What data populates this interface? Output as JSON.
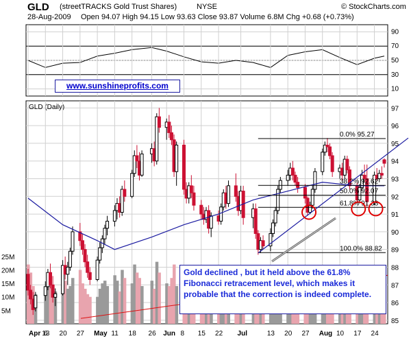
{
  "header": {
    "ticker": "GLD",
    "fullname": "(streetTRACKS Gold Trust Shares)",
    "exchange": "NYSE",
    "brand": "© StockCharts.com",
    "date": "28-Aug-2009",
    "ohlc_text": "Open 94.07  High 94.15  Low 93.63  Close 93.87  Volume 6.8M  Chg +0.68 (+0.73%)",
    "ohlc": {
      "open": 94.07,
      "high": 94.15,
      "low": 93.63,
      "close": 93.87,
      "volume": "6.8M",
      "change": "+0.68 (+0.73%)"
    }
  },
  "website": "www.sunshineprofits.com",
  "annotation": "Gold declined , but it held above the 61.8% Fibonacci retracement level, which makes it probable that the correction is indeed complete.",
  "colors": {
    "rsi_line": "#000000",
    "price_up": "#000000",
    "price_down": "#cc1133",
    "moving_average": "#1a1aa0",
    "trendline": "#1a1aa0",
    "fib_lines": "#000000",
    "circles": "#e00000",
    "volume_up": "#9a9a9a",
    "volume_down": "#e8a4ae",
    "volume_ma": "#dd1111",
    "grid": "#d0d0d0"
  },
  "chart_data": [
    {
      "type": "line",
      "name": "rsi",
      "yticks": [
        10,
        30,
        50,
        70,
        90
      ],
      "ylim": [
        0,
        100
      ],
      "reference_levels": [
        30,
        70
      ],
      "x": [
        "2009-04-06",
        "2009-04-13",
        "2009-04-20",
        "2009-04-27",
        "2009-05-04",
        "2009-05-11",
        "2009-05-18",
        "2009-05-26",
        "2009-06-01",
        "2009-06-08",
        "2009-06-15",
        "2009-06-22",
        "2009-06-29",
        "2009-07-06",
        "2009-07-13",
        "2009-07-20",
        "2009-07-27",
        "2009-08-03",
        "2009-08-10",
        "2009-08-17",
        "2009-08-24",
        "2009-08-28"
      ],
      "values": [
        50,
        40,
        46,
        47,
        56,
        60,
        65,
        68,
        63,
        55,
        48,
        46,
        50,
        47,
        40,
        57,
        62,
        65,
        54,
        44,
        53,
        56
      ]
    },
    {
      "type": "candlestick",
      "name": "price",
      "title": "GLD (Daily)",
      "yticks": [
        85,
        86,
        87,
        88,
        89,
        90,
        91,
        92,
        93,
        94,
        95,
        96,
        97
      ],
      "ylim": [
        84.8,
        97.4
      ],
      "xticks": [
        "Apr",
        "6",
        "13",
        "20",
        "27",
        "May",
        "11",
        "18",
        "26",
        "Jun",
        "8",
        "15",
        "22",
        "Jul",
        "13",
        "20",
        "27",
        "Aug",
        "10",
        "17",
        "24"
      ],
      "grid": true,
      "candles": [
        {
          "d": "2009-04-06",
          "o": 87.6,
          "h": 87.9,
          "l": 86.4,
          "c": 86.7
        },
        {
          "d": "2009-04-07",
          "o": 86.7,
          "h": 87.0,
          "l": 85.9,
          "c": 86.2
        },
        {
          "d": "2009-04-08",
          "o": 86.2,
          "h": 86.6,
          "l": 85.3,
          "c": 85.6
        },
        {
          "d": "2009-04-09",
          "o": 85.7,
          "h": 86.6,
          "l": 85.5,
          "c": 86.4
        },
        {
          "d": "2009-04-13",
          "o": 86.4,
          "h": 87.2,
          "l": 86.1,
          "c": 86.9
        },
        {
          "d": "2009-04-14",
          "o": 86.9,
          "h": 87.9,
          "l": 86.7,
          "c": 87.7
        },
        {
          "d": "2009-04-15",
          "o": 87.7,
          "h": 88.2,
          "l": 86.8,
          "c": 87.0
        },
        {
          "d": "2009-04-16",
          "o": 87.0,
          "h": 87.5,
          "l": 86.0,
          "c": 86.3
        },
        {
          "d": "2009-04-17",
          "o": 86.3,
          "h": 86.8,
          "l": 85.8,
          "c": 86.5
        },
        {
          "d": "2009-04-20",
          "o": 86.5,
          "h": 88.4,
          "l": 86.4,
          "c": 88.1
        },
        {
          "d": "2009-04-21",
          "o": 88.1,
          "h": 88.6,
          "l": 87.3,
          "c": 87.6
        },
        {
          "d": "2009-04-22",
          "o": 87.6,
          "h": 88.3,
          "l": 87.0,
          "c": 88.0
        },
        {
          "d": "2009-04-23",
          "o": 88.0,
          "h": 89.1,
          "l": 87.8,
          "c": 88.9
        },
        {
          "d": "2009-04-24",
          "o": 88.9,
          "h": 90.3,
          "l": 88.7,
          "c": 90.0
        },
        {
          "d": "2009-04-27",
          "o": 90.0,
          "h": 90.5,
          "l": 89.2,
          "c": 89.5
        },
        {
          "d": "2009-04-28",
          "o": 89.5,
          "h": 89.9,
          "l": 88.7,
          "c": 89.0
        },
        {
          "d": "2009-04-29",
          "o": 89.0,
          "h": 89.3,
          "l": 88.0,
          "c": 88.3
        },
        {
          "d": "2009-04-30",
          "o": 88.3,
          "h": 88.7,
          "l": 87.4,
          "c": 87.7
        },
        {
          "d": "2009-05-01",
          "o": 87.7,
          "h": 88.0,
          "l": 87.0,
          "c": 87.3
        },
        {
          "d": "2009-05-04",
          "o": 87.3,
          "h": 88.6,
          "l": 87.2,
          "c": 88.4
        },
        {
          "d": "2009-05-05",
          "o": 88.4,
          "h": 89.4,
          "l": 88.2,
          "c": 89.1
        },
        {
          "d": "2009-05-06",
          "o": 89.1,
          "h": 89.8,
          "l": 88.8,
          "c": 89.6
        },
        {
          "d": "2009-05-07",
          "o": 89.6,
          "h": 90.4,
          "l": 89.3,
          "c": 90.2
        },
        {
          "d": "2009-05-08",
          "o": 90.2,
          "h": 90.9,
          "l": 89.8,
          "c": 90.6
        },
        {
          "d": "2009-05-11",
          "o": 90.6,
          "h": 91.5,
          "l": 90.3,
          "c": 91.2
        },
        {
          "d": "2009-05-12",
          "o": 91.2,
          "h": 91.9,
          "l": 90.7,
          "c": 91.6
        },
        {
          "d": "2009-05-13",
          "o": 91.6,
          "h": 92.0,
          "l": 90.8,
          "c": 91.1
        },
        {
          "d": "2009-05-14",
          "o": 91.1,
          "h": 92.6,
          "l": 90.9,
          "c": 92.4
        },
        {
          "d": "2009-05-15",
          "o": 92.4,
          "h": 92.9,
          "l": 91.7,
          "c": 92.0
        },
        {
          "d": "2009-05-18",
          "o": 92.0,
          "h": 93.5,
          "l": 91.9,
          "c": 93.3
        },
        {
          "d": "2009-05-19",
          "o": 93.3,
          "h": 94.6,
          "l": 93.1,
          "c": 94.3
        },
        {
          "d": "2009-05-20",
          "o": 94.3,
          "h": 94.9,
          "l": 93.6,
          "c": 94.0
        },
        {
          "d": "2009-05-21",
          "o": 94.0,
          "h": 94.5,
          "l": 92.9,
          "c": 93.2
        },
        {
          "d": "2009-05-22",
          "o": 93.2,
          "h": 94.6,
          "l": 93.1,
          "c": 94.4
        },
        {
          "d": "2009-05-26",
          "o": 94.4,
          "h": 95.0,
          "l": 93.9,
          "c": 94.7
        },
        {
          "d": "2009-05-27",
          "o": 94.7,
          "h": 95.1,
          "l": 93.7,
          "c": 94.0
        },
        {
          "d": "2009-05-28",
          "o": 94.0,
          "h": 96.7,
          "l": 93.8,
          "c": 96.5
        },
        {
          "d": "2009-05-29",
          "o": 96.5,
          "h": 97.0,
          "l": 95.6,
          "c": 95.9
        },
        {
          "d": "2009-06-01",
          "o": 95.9,
          "h": 96.4,
          "l": 95.2,
          "c": 96.2
        },
        {
          "d": "2009-06-02",
          "o": 96.2,
          "h": 96.6,
          "l": 95.3,
          "c": 95.6
        },
        {
          "d": "2009-06-03",
          "o": 95.6,
          "h": 96.0,
          "l": 94.9,
          "c": 95.2
        },
        {
          "d": "2009-06-04",
          "o": 95.2,
          "h": 95.5,
          "l": 93.1,
          "c": 93.4
        },
        {
          "d": "2009-06-05",
          "o": 93.4,
          "h": 95.1,
          "l": 92.6,
          "c": 94.9
        },
        {
          "d": "2009-06-08",
          "o": 94.9,
          "h": 95.2,
          "l": 92.1,
          "c": 92.4
        },
        {
          "d": "2009-06-09",
          "o": 92.4,
          "h": 92.8,
          "l": 91.6,
          "c": 91.9
        },
        {
          "d": "2009-06-10",
          "o": 91.9,
          "h": 92.8,
          "l": 91.6,
          "c": 92.6
        },
        {
          "d": "2009-06-11",
          "o": 92.6,
          "h": 93.2,
          "l": 91.9,
          "c": 92.2
        },
        {
          "d": "2009-06-12",
          "o": 92.2,
          "h": 92.6,
          "l": 91.2,
          "c": 91.5
        },
        {
          "d": "2009-06-15",
          "o": 91.5,
          "h": 91.8,
          "l": 90.7,
          "c": 91.0
        },
        {
          "d": "2009-06-16",
          "o": 91.0,
          "h": 91.4,
          "l": 90.4,
          "c": 90.7
        },
        {
          "d": "2009-06-17",
          "o": 90.7,
          "h": 91.4,
          "l": 90.5,
          "c": 91.2
        },
        {
          "d": "2009-06-18",
          "o": 91.2,
          "h": 91.5,
          "l": 89.9,
          "c": 90.2
        },
        {
          "d": "2009-06-19",
          "o": 90.2,
          "h": 91.1,
          "l": 89.7,
          "c": 90.9
        },
        {
          "d": "2009-06-22",
          "o": 90.9,
          "h": 91.2,
          "l": 90.4,
          "c": 90.6
        },
        {
          "d": "2009-06-23",
          "o": 90.6,
          "h": 91.6,
          "l": 90.4,
          "c": 91.4
        },
        {
          "d": "2009-06-24",
          "o": 91.4,
          "h": 92.4,
          "l": 91.2,
          "c": 92.2
        },
        {
          "d": "2009-06-25",
          "o": 92.2,
          "h": 92.6,
          "l": 91.3,
          "c": 91.6
        },
        {
          "d": "2009-06-26",
          "o": 91.6,
          "h": 92.9,
          "l": 91.4,
          "c": 92.6
        },
        {
          "d": "2009-06-29",
          "o": 92.6,
          "h": 93.3,
          "l": 91.7,
          "c": 92.0
        },
        {
          "d": "2009-06-30",
          "o": 92.0,
          "h": 92.3,
          "l": 90.9,
          "c": 91.2
        },
        {
          "d": "2009-07-01",
          "o": 91.2,
          "h": 92.6,
          "l": 91.0,
          "c": 92.3
        },
        {
          "d": "2009-07-02",
          "o": 92.3,
          "h": 92.6,
          "l": 90.4,
          "c": 90.8
        },
        {
          "d": "2009-07-06",
          "o": 90.8,
          "h": 91.6,
          "l": 90.2,
          "c": 91.3
        },
        {
          "d": "2009-07-07",
          "o": 91.3,
          "h": 91.6,
          "l": 89.6,
          "c": 89.9
        },
        {
          "d": "2009-07-08",
          "o": 89.9,
          "h": 90.1,
          "l": 88.7,
          "c": 89.0
        },
        {
          "d": "2009-07-09",
          "o": 89.0,
          "h": 89.7,
          "l": 88.8,
          "c": 89.5
        },
        {
          "d": "2009-07-10",
          "o": 89.5,
          "h": 89.8,
          "l": 89.0,
          "c": 89.2
        },
        {
          "d": "2009-07-13",
          "o": 89.2,
          "h": 90.2,
          "l": 88.9,
          "c": 89.9
        },
        {
          "d": "2009-07-14",
          "o": 89.9,
          "h": 90.7,
          "l": 89.7,
          "c": 90.5
        },
        {
          "d": "2009-07-15",
          "o": 90.5,
          "h": 91.4,
          "l": 90.3,
          "c": 91.2
        },
        {
          "d": "2009-07-16",
          "o": 91.2,
          "h": 92.6,
          "l": 91.0,
          "c": 92.4
        },
        {
          "d": "2009-07-17",
          "o": 92.4,
          "h": 93.1,
          "l": 92.2,
          "c": 92.9
        },
        {
          "d": "2009-07-20",
          "o": 92.9,
          "h": 93.5,
          "l": 92.6,
          "c": 93.2
        },
        {
          "d": "2009-07-21",
          "o": 93.2,
          "h": 93.9,
          "l": 92.9,
          "c": 93.6
        },
        {
          "d": "2009-07-22",
          "o": 93.6,
          "h": 94.0,
          "l": 92.9,
          "c": 93.2
        },
        {
          "d": "2009-07-23",
          "o": 93.2,
          "h": 93.4,
          "l": 92.6,
          "c": 92.8
        },
        {
          "d": "2009-07-24",
          "o": 92.8,
          "h": 93.1,
          "l": 92.2,
          "c": 92.5
        },
        {
          "d": "2009-07-27",
          "o": 92.5,
          "h": 92.7,
          "l": 91.6,
          "c": 91.9
        },
        {
          "d": "2009-07-28",
          "o": 91.9,
          "h": 92.0,
          "l": 90.9,
          "c": 91.1
        },
        {
          "d": "2009-07-29",
          "o": 91.1,
          "h": 91.7,
          "l": 91.0,
          "c": 91.5
        },
        {
          "d": "2009-07-30",
          "o": 91.5,
          "h": 92.6,
          "l": 91.3,
          "c": 92.4
        },
        {
          "d": "2009-07-31",
          "o": 92.4,
          "h": 93.6,
          "l": 92.2,
          "c": 93.4
        },
        {
          "d": "2009-08-03",
          "o": 93.4,
          "h": 94.7,
          "l": 93.2,
          "c": 94.5
        },
        {
          "d": "2009-08-04",
          "o": 94.5,
          "h": 95.1,
          "l": 94.3,
          "c": 94.9
        },
        {
          "d": "2009-08-05",
          "o": 94.9,
          "h": 95.3,
          "l": 94.5,
          "c": 94.8
        },
        {
          "d": "2009-08-06",
          "o": 94.8,
          "h": 95.0,
          "l": 94.1,
          "c": 94.3
        },
        {
          "d": "2009-08-07",
          "o": 94.3,
          "h": 94.5,
          "l": 93.1,
          "c": 93.4
        },
        {
          "d": "2009-08-10",
          "o": 93.4,
          "h": 93.8,
          "l": 93.0,
          "c": 93.6
        },
        {
          "d": "2009-08-11",
          "o": 93.6,
          "h": 93.9,
          "l": 92.9,
          "c": 93.2
        },
        {
          "d": "2009-08-12",
          "o": 93.2,
          "h": 94.3,
          "l": 93.0,
          "c": 94.1
        },
        {
          "d": "2009-08-13",
          "o": 94.1,
          "h": 94.3,
          "l": 93.3,
          "c": 93.5
        },
        {
          "d": "2009-08-14",
          "o": 93.5,
          "h": 93.7,
          "l": 92.4,
          "c": 92.6
        },
        {
          "d": "2009-08-17",
          "o": 92.6,
          "h": 92.8,
          "l": 91.6,
          "c": 91.8
        },
        {
          "d": "2009-08-18",
          "o": 91.8,
          "h": 92.7,
          "l": 91.6,
          "c": 92.5
        },
        {
          "d": "2009-08-19",
          "o": 92.5,
          "h": 93.5,
          "l": 92.3,
          "c": 93.2
        },
        {
          "d": "2009-08-20",
          "o": 93.2,
          "h": 93.8,
          "l": 92.8,
          "c": 93.0
        },
        {
          "d": "2009-08-21",
          "o": 93.0,
          "h": 93.8,
          "l": 91.4,
          "c": 91.7
        },
        {
          "d": "2009-08-24",
          "o": 91.7,
          "h": 93.4,
          "l": 91.5,
          "c": 93.2
        },
        {
          "d": "2009-08-25",
          "o": 93.2,
          "h": 93.6,
          "l": 92.9,
          "c": 93.0
        },
        {
          "d": "2009-08-26",
          "o": 93.0,
          "h": 93.5,
          "l": 92.8,
          "c": 93.3
        },
        {
          "d": "2009-08-27",
          "o": 93.3,
          "h": 93.7,
          "l": 93.0,
          "c": 93.2
        },
        {
          "d": "2009-08-28",
          "o": 94.07,
          "h": 94.15,
          "l": 93.63,
          "c": 93.87
        }
      ],
      "moving_average": [
        {
          "d": "2009-04-06",
          "v": 91.9
        },
        {
          "d": "2009-04-20",
          "v": 90.4
        },
        {
          "d": "2009-05-04",
          "v": 89.5
        },
        {
          "d": "2009-05-11",
          "v": 89.0
        },
        {
          "d": "2009-05-26",
          "v": 89.7
        },
        {
          "d": "2009-06-08",
          "v": 90.4
        },
        {
          "d": "2009-06-22",
          "v": 91.0
        },
        {
          "d": "2009-07-06",
          "v": 91.8
        },
        {
          "d": "2009-07-20",
          "v": 92.3
        },
        {
          "d": "2009-08-03",
          "v": 92.8
        },
        {
          "d": "2009-08-17",
          "v": 92.6
        },
        {
          "d": "2009-08-28",
          "v": 92.6
        }
      ],
      "fibonacci_levels": [
        {
          "label": "0.0% 95.27",
          "value": 95.27
        },
        {
          "label": "38.2% 92.62",
          "value": 92.62
        },
        {
          "label": "50.0% 92.07",
          "value": 92.07
        },
        {
          "label": "61.8% 91.38",
          "value": 91.38
        },
        {
          "label": "100.0% 88.82",
          "value": 88.82
        }
      ],
      "trendline": {
        "start": {
          "d": "2009-07-08",
          "v": 88.8
        },
        "end": {
          "d": "2009-08-28",
          "v": 94.2
        }
      },
      "circled_lows": [
        {
          "d": "2009-07-28",
          "v": 91.1
        },
        {
          "d": "2009-08-17",
          "v": 91.3
        },
        {
          "d": "2009-08-24",
          "v": 91.3
        }
      ]
    },
    {
      "type": "bar",
      "name": "volume",
      "yticks": [
        "5M",
        "10M",
        "15M",
        "20M",
        "25M"
      ],
      "ylim": [
        0,
        28
      ],
      "values_millions": [
        22,
        19,
        14,
        11,
        13,
        15,
        17,
        14,
        12,
        15,
        16,
        13,
        14,
        17,
        20,
        15,
        13,
        11,
        10,
        10,
        13,
        15,
        16,
        14,
        18,
        16,
        12,
        20,
        17,
        15,
        22,
        19,
        17,
        14,
        16,
        13,
        23,
        19,
        15,
        14,
        17,
        22,
        14,
        17,
        12,
        13,
        11,
        10,
        12,
        14,
        11,
        13,
        10,
        9,
        11,
        12,
        10,
        9,
        12,
        13,
        10,
        14,
        15,
        16,
        18,
        14,
        12,
        11,
        10,
        10,
        11,
        14,
        10,
        9,
        8,
        9,
        11,
        13,
        14,
        12,
        10,
        11,
        14,
        12,
        9,
        8,
        10,
        11,
        12,
        13,
        12,
        10,
        8,
        9,
        10,
        12,
        13,
        10,
        8,
        9,
        7,
        7
      ],
      "ma_values_millions": [
        2,
        3,
        4,
        5,
        6,
        7,
        8,
        10,
        11,
        12,
        13,
        14,
        15,
        16,
        17,
        17,
        18
      ]
    }
  ]
}
